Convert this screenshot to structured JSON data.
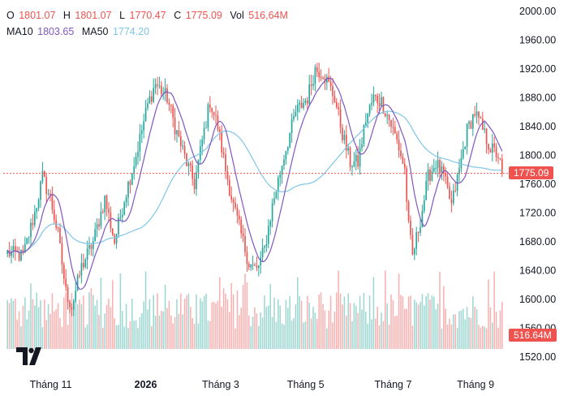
{
  "legend": {
    "o_label": "O",
    "o_value": "1801.07",
    "h_label": "H",
    "h_value": "1801.07",
    "l_label": "L",
    "l_value": "1770.47",
    "c_label": "C",
    "c_value": "1775.09",
    "vol_label": "Vol",
    "vol_value": "516,64M",
    "ma10_label": "MA10",
    "ma10_value": "1803.65",
    "ma50_label": "MA50",
    "ma50_value": "1774.20"
  },
  "badges": {
    "last_price": "1775.09",
    "last_volume": "516.64M"
  },
  "colors": {
    "up": "#26a69a",
    "down": "#ef5350",
    "ma10": "#7e57c2",
    "ma50": "#7ec6e8",
    "axis_text": "#131722"
  },
  "logo_icon": "tradingview-logo",
  "chart_data": {
    "type": "candlestick",
    "y_ticks": [
      1520.0,
      1560.0,
      1600.0,
      1640.0,
      1680.0,
      1720.0,
      1760.0,
      1800.0,
      1840.0,
      1880.0,
      1920.0,
      1960.0,
      2000.0
    ],
    "x_labels": [
      {
        "label": "Tháng 11",
        "t": 0.095
      },
      {
        "label": "2026",
        "t": 0.285,
        "bold": true
      },
      {
        "label": "Tháng 3",
        "t": 0.435
      },
      {
        "label": "Tháng 5",
        "t": 0.605
      },
      {
        "label": "Tháng 7",
        "t": 0.78
      },
      {
        "label": "Tháng 9",
        "t": 0.945
      }
    ],
    "price_anchors": [
      [
        0,
        1665
      ],
      [
        8,
        1660
      ],
      [
        14,
        1720
      ],
      [
        18,
        1770
      ],
      [
        22,
        1740
      ],
      [
        26,
        1690
      ],
      [
        30,
        1610
      ],
      [
        33,
        1590
      ],
      [
        38,
        1645
      ],
      [
        44,
        1680
      ],
      [
        50,
        1740
      ],
      [
        55,
        1680
      ],
      [
        60,
        1740
      ],
      [
        66,
        1800
      ],
      [
        72,
        1870
      ],
      [
        76,
        1900
      ],
      [
        82,
        1880
      ],
      [
        86,
        1840
      ],
      [
        92,
        1790
      ],
      [
        96,
        1760
      ],
      [
        100,
        1820
      ],
      [
        104,
        1875
      ],
      [
        108,
        1840
      ],
      [
        112,
        1780
      ],
      [
        116,
        1730
      ],
      [
        120,
        1690
      ],
      [
        124,
        1650
      ],
      [
        128,
        1640
      ],
      [
        132,
        1670
      ],
      [
        136,
        1730
      ],
      [
        142,
        1800
      ],
      [
        148,
        1860
      ],
      [
        154,
        1880
      ],
      [
        158,
        1920
      ],
      [
        162,
        1915
      ],
      [
        168,
        1880
      ],
      [
        172,
        1830
      ],
      [
        176,
        1790
      ],
      [
        180,
        1790
      ],
      [
        184,
        1850
      ],
      [
        188,
        1880
      ],
      [
        192,
        1875
      ],
      [
        196,
        1850
      ],
      [
        200,
        1820
      ],
      [
        204,
        1780
      ],
      [
        206,
        1700
      ],
      [
        208,
        1660
      ],
      [
        212,
        1710
      ],
      [
        216,
        1770
      ],
      [
        220,
        1790
      ],
      [
        224,
        1770
      ],
      [
        228,
        1730
      ],
      [
        232,
        1780
      ],
      [
        236,
        1835
      ],
      [
        240,
        1860
      ],
      [
        244,
        1835
      ],
      [
        248,
        1810
      ],
      [
        252,
        1800
      ],
      [
        254,
        1775
      ]
    ],
    "volume_max": 900
  }
}
